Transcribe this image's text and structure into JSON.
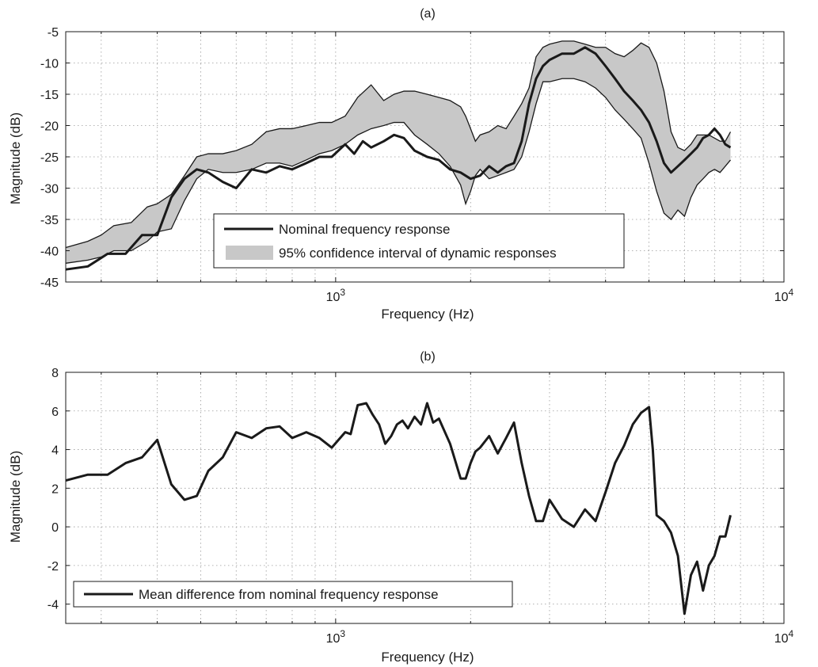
{
  "chart_data": [
    {
      "id": "a",
      "type": "line",
      "title": "(a)",
      "xlabel": "Frequency (Hz)",
      "ylabel": "Magnitude (dB)",
      "xscale": "log",
      "xlim": [
        250,
        10000
      ],
      "ylim": [
        -45,
        -5
      ],
      "yticks": [
        -45,
        -40,
        -35,
        -30,
        -25,
        -20,
        -15,
        -10,
        -5
      ],
      "xticks": [
        {
          "value": 1000,
          "base": "10",
          "exp": "3"
        },
        {
          "value": 10000,
          "base": "10",
          "exp": "4"
        }
      ],
      "grid": true,
      "legend_position": "bottom-center",
      "legend": [
        {
          "label": "Nominal frequency response",
          "kind": "line",
          "color": "#1a1a1a"
        },
        {
          "label": "95% confidence interval of dynamic responses",
          "kind": "patch",
          "color": "#c8c8c8"
        }
      ],
      "band": {
        "x": [
          250,
          280,
          300,
          320,
          350,
          380,
          400,
          430,
          460,
          490,
          520,
          560,
          600,
          650,
          700,
          750,
          800,
          860,
          920,
          980,
          1050,
          1120,
          1200,
          1280,
          1350,
          1420,
          1500,
          1600,
          1700,
          1800,
          1900,
          1950,
          2000,
          2050,
          2100,
          2200,
          2300,
          2400,
          2500,
          2600,
          2700,
          2800,
          2900,
          3000,
          3200,
          3400,
          3600,
          3800,
          4000,
          4200,
          4400,
          4600,
          4800,
          5000,
          5200,
          5400,
          5600,
          5800,
          6000,
          6200,
          6400,
          6600,
          6800,
          7000,
          7200,
          7400,
          7600
        ],
        "upper": [
          -39.5,
          -38.5,
          -37.5,
          -36,
          -35.5,
          -33,
          -32.5,
          -31,
          -28,
          -25,
          -24.5,
          -24.5,
          -24,
          -23,
          -21,
          -20.5,
          -20.5,
          -20,
          -19.5,
          -19.5,
          -18.5,
          -15.5,
          -13.5,
          -16,
          -15,
          -14.5,
          -14.5,
          -15,
          -15.5,
          -16,
          -17,
          -18.5,
          -20.5,
          -22.5,
          -21.5,
          -21,
          -20,
          -20.5,
          -18.5,
          -16.5,
          -14,
          -9,
          -7.5,
          -7,
          -6.5,
          -6.5,
          -7,
          -7.5,
          -7.5,
          -8.5,
          -9,
          -8,
          -6.8,
          -7.5,
          -10,
          -14.5,
          -21,
          -23.5,
          -24,
          -23,
          -21.5,
          -21.5,
          -21.5,
          -22,
          -22.5,
          -22.5,
          -21
        ],
        "lower": [
          -42,
          -41.5,
          -41,
          -40,
          -40,
          -38.5,
          -37,
          -36.5,
          -32,
          -28.5,
          -27,
          -27.5,
          -27.5,
          -27,
          -26,
          -26,
          -26.5,
          -25.5,
          -24.5,
          -24,
          -23,
          -21.5,
          -20.5,
          -20,
          -19.5,
          -19.5,
          -21.5,
          -23,
          -24.5,
          -26.5,
          -29.5,
          -32.5,
          -30.5,
          -28,
          -27,
          -28.5,
          -28,
          -27.5,
          -27,
          -25,
          -21,
          -16.5,
          -13,
          -13,
          -12.5,
          -12.5,
          -13,
          -14,
          -15.5,
          -17.5,
          -19,
          -20.5,
          -22,
          -26,
          -30.5,
          -34,
          -35,
          -33.5,
          -34.5,
          -31.5,
          -29.5,
          -28.5,
          -27.5,
          -27,
          -27.5,
          -26.5,
          -25.5
        ]
      },
      "series": [
        {
          "name": "Nominal frequency response",
          "x": [
            250,
            280,
            310,
            340,
            370,
            400,
            430,
            460,
            490,
            520,
            560,
            600,
            650,
            700,
            750,
            800,
            860,
            920,
            980,
            1050,
            1100,
            1150,
            1200,
            1280,
            1350,
            1420,
            1500,
            1600,
            1700,
            1800,
            1900,
            2000,
            2100,
            2200,
            2300,
            2400,
            2500,
            2600,
            2700,
            2800,
            2900,
            3000,
            3200,
            3400,
            3600,
            3800,
            4000,
            4200,
            4400,
            4600,
            4800,
            5000,
            5200,
            5400,
            5600,
            5800,
            6000,
            6200,
            6400,
            6600,
            6800,
            7000,
            7200,
            7400,
            7600
          ],
          "y": [
            -43,
            -42.5,
            -40.5,
            -40.5,
            -37.5,
            -37.5,
            -31.5,
            -28.5,
            -27,
            -27.5,
            -29,
            -30,
            -27,
            -27.5,
            -26.5,
            -27,
            -26,
            -25,
            -25,
            -23,
            -24.5,
            -22.5,
            -23.5,
            -22.5,
            -21.5,
            -22,
            -24,
            -25,
            -25.5,
            -27,
            -27.5,
            -28.5,
            -28,
            -26.5,
            -27.5,
            -26.5,
            -26,
            -22.5,
            -16.5,
            -12.5,
            -10.5,
            -9.5,
            -8.5,
            -8.5,
            -7.5,
            -8.5,
            -10.5,
            -12.5,
            -14.5,
            -16,
            -17.5,
            -19.5,
            -22.5,
            -26,
            -27.5,
            -26.5,
            -25.5,
            -24.5,
            -23.5,
            -22,
            -21.5,
            -20.5,
            -21.5,
            -23,
            -23.5
          ]
        }
      ]
    },
    {
      "id": "b",
      "type": "line",
      "title": "(b)",
      "xlabel": "Frequency (Hz)",
      "ylabel": "Magnitude (dB)",
      "xscale": "log",
      "xlim": [
        250,
        10000
      ],
      "ylim": [
        -5,
        8
      ],
      "yticks": [
        -4,
        -2,
        0,
        2,
        4,
        6,
        8
      ],
      "xticks": [
        {
          "value": 1000,
          "base": "10",
          "exp": "3"
        },
        {
          "value": 10000,
          "base": "10",
          "exp": "4"
        }
      ],
      "grid": true,
      "legend_position": "bottom-left",
      "legend": [
        {
          "label": "Mean difference from nominal frequency response",
          "kind": "line",
          "color": "#1a1a1a"
        }
      ],
      "series": [
        {
          "name": "Mean difference from nominal frequency response",
          "x": [
            250,
            280,
            310,
            340,
            370,
            400,
            430,
            460,
            490,
            520,
            560,
            600,
            650,
            700,
            750,
            800,
            860,
            920,
            980,
            1050,
            1080,
            1120,
            1170,
            1210,
            1250,
            1290,
            1330,
            1370,
            1410,
            1450,
            1500,
            1550,
            1600,
            1650,
            1700,
            1800,
            1900,
            1950,
            2000,
            2050,
            2100,
            2200,
            2300,
            2400,
            2500,
            2600,
            2700,
            2800,
            2900,
            3000,
            3200,
            3400,
            3600,
            3800,
            4000,
            4200,
            4400,
            4600,
            4800,
            5000,
            5100,
            5200,
            5400,
            5600,
            5800,
            6000,
            6200,
            6400,
            6600,
            6800,
            7000,
            7200,
            7400,
            7600
          ],
          "y": [
            2.4,
            2.7,
            2.7,
            3.3,
            3.6,
            4.5,
            2.2,
            1.4,
            1.6,
            2.9,
            3.6,
            4.9,
            4.6,
            5.1,
            5.2,
            4.6,
            4.9,
            4.6,
            4.1,
            4.9,
            4.8,
            6.3,
            6.4,
            5.8,
            5.3,
            4.3,
            4.7,
            5.3,
            5.5,
            5.1,
            5.7,
            5.3,
            6.4,
            5.4,
            5.6,
            4.3,
            2.5,
            2.5,
            3.3,
            3.9,
            4.1,
            4.7,
            3.8,
            4.6,
            5.4,
            3.3,
            1.6,
            0.3,
            0.3,
            1.4,
            0.4,
            0.0,
            0.9,
            0.3,
            1.8,
            3.3,
            4.2,
            5.3,
            5.9,
            6.2,
            4.0,
            0.6,
            0.3,
            -0.3,
            -1.5,
            -4.5,
            -2.5,
            -1.8,
            -3.3,
            -2.0,
            -1.5,
            -0.5,
            -0.5,
            0.6
          ]
        }
      ]
    }
  ]
}
